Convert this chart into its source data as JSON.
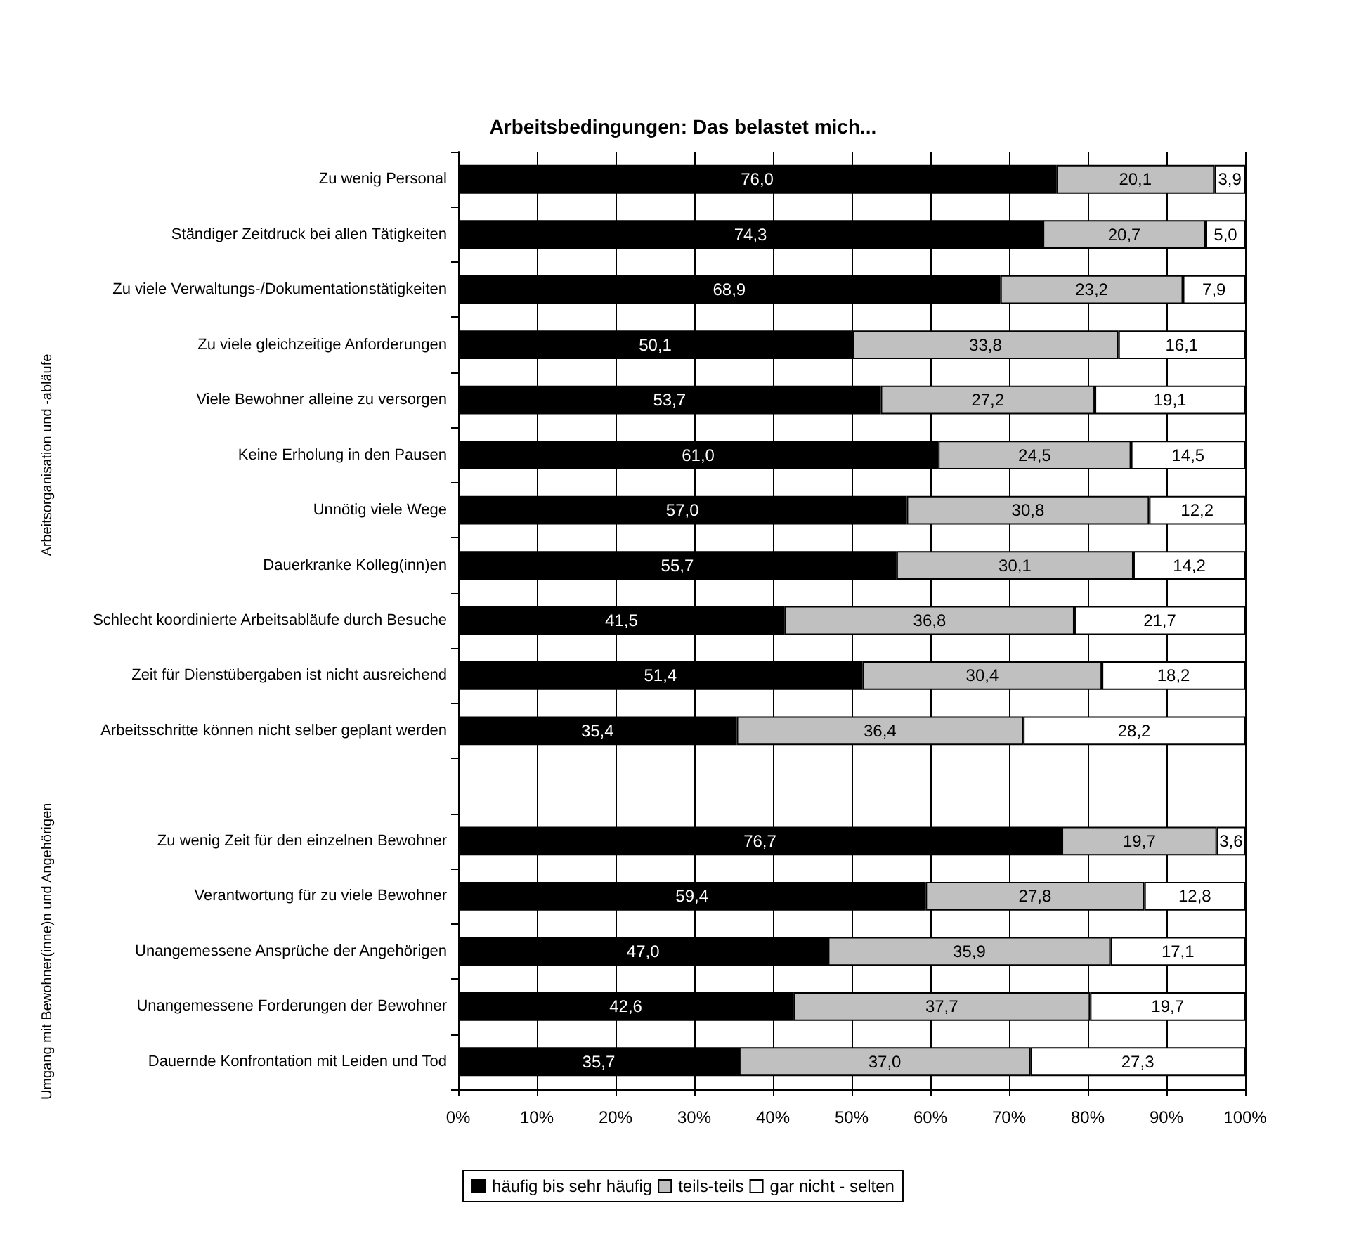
{
  "chart_data": {
    "type": "bar",
    "title": "Arbeitsbedingungen: Das belastet mich...",
    "orientation": "horizontal",
    "stacked": true,
    "grid": "x",
    "legend": "bottom",
    "categories": [
      "Zu wenig Personal",
      "Ständiger Zeitdruck bei allen Tätigkeiten",
      "Zu viele Verwaltungs-/Dokumentationstätigkeiten",
      "Zu viele gleichzeitige Anforderungen",
      "Viele Bewohner alleine zu versorgen",
      "Keine Erholung in den Pausen",
      "Unnötig viele Wege",
      "Dauerkranke Kolleg(inn)en",
      "Schlecht koordinierte Arbeitsabläufe durch Besuche",
      "Zeit für Dienstübergaben ist nicht ausreichend",
      "Arbeitsschritte können nicht selber geplant werden",
      null,
      "Zu wenig Zeit für den einzelnen Bewohner",
      "Verantwortung für zu viele Bewohner",
      "Unangemessene Ansprüche der Angehörigen",
      "Unangemessene Forderungen der Bewohner",
      "Dauernde Konfrontation mit Leiden und Tod"
    ],
    "series": [
      {
        "name": "häufig bis sehr häufig",
        "color": "#000000",
        "values": [
          76.0,
          74.3,
          68.9,
          50.1,
          53.7,
          61.0,
          57.0,
          55.7,
          41.5,
          51.4,
          35.4,
          null,
          76.7,
          59.4,
          47.0,
          42.6,
          35.7
        ],
        "value_labels": [
          "76,0",
          "74,3",
          "68,9",
          "50,1",
          "53,7",
          "61,0",
          "57,0",
          "55,7",
          "41,5",
          "51,4",
          "35,4",
          null,
          "76,7",
          "59,4",
          "47,0",
          "42,6",
          "35,7"
        ]
      },
      {
        "name": "teils-teils",
        "color": "#c0c0c0",
        "values": [
          20.1,
          20.7,
          23.2,
          33.8,
          27.2,
          24.5,
          30.8,
          30.1,
          36.8,
          30.4,
          36.4,
          null,
          19.7,
          27.8,
          35.9,
          37.7,
          37.0
        ],
        "value_labels": [
          "20,1",
          "20,7",
          "23,2",
          "33,8",
          "27,2",
          "24,5",
          "30,8",
          "30,1",
          "36,8",
          "30,4",
          "36,4",
          null,
          "19,7",
          "27,8",
          "35,9",
          "37,7",
          "37,0"
        ]
      },
      {
        "name": "gar nicht - selten",
        "color": "#ffffff",
        "values": [
          3.9,
          5.0,
          7.9,
          16.1,
          19.1,
          14.5,
          12.2,
          14.2,
          21.7,
          18.2,
          28.2,
          null,
          3.6,
          12.8,
          17.1,
          19.7,
          27.3
        ],
        "value_labels": [
          "3,9",
          "5,0",
          "7,9",
          "16,1",
          "19,1",
          "14,5",
          "12,2",
          "14,2",
          "21,7",
          "18,2",
          "28,2",
          null,
          "3,6",
          "12,8",
          "17,1",
          "19,7",
          "27,3"
        ]
      }
    ],
    "xlim": [
      0,
      100
    ],
    "xticks": [
      {
        "value": 0,
        "label": "0%"
      },
      {
        "value": 10,
        "label": "10%"
      },
      {
        "value": 20,
        "label": "20%"
      },
      {
        "value": 30,
        "label": "30%"
      },
      {
        "value": 40,
        "label": "40%"
      },
      {
        "value": 50,
        "label": "50%"
      },
      {
        "value": 60,
        "label": "60%"
      },
      {
        "value": 70,
        "label": "70%"
      },
      {
        "value": 80,
        "label": "80%"
      },
      {
        "value": 90,
        "label": "90%"
      },
      {
        "value": 100,
        "label": "100%"
      }
    ],
    "annotations": [
      "Arbeitsorganisation und -abläufe",
      "Umgang mit Bewohner(inne)n und Angehörigen"
    ]
  }
}
